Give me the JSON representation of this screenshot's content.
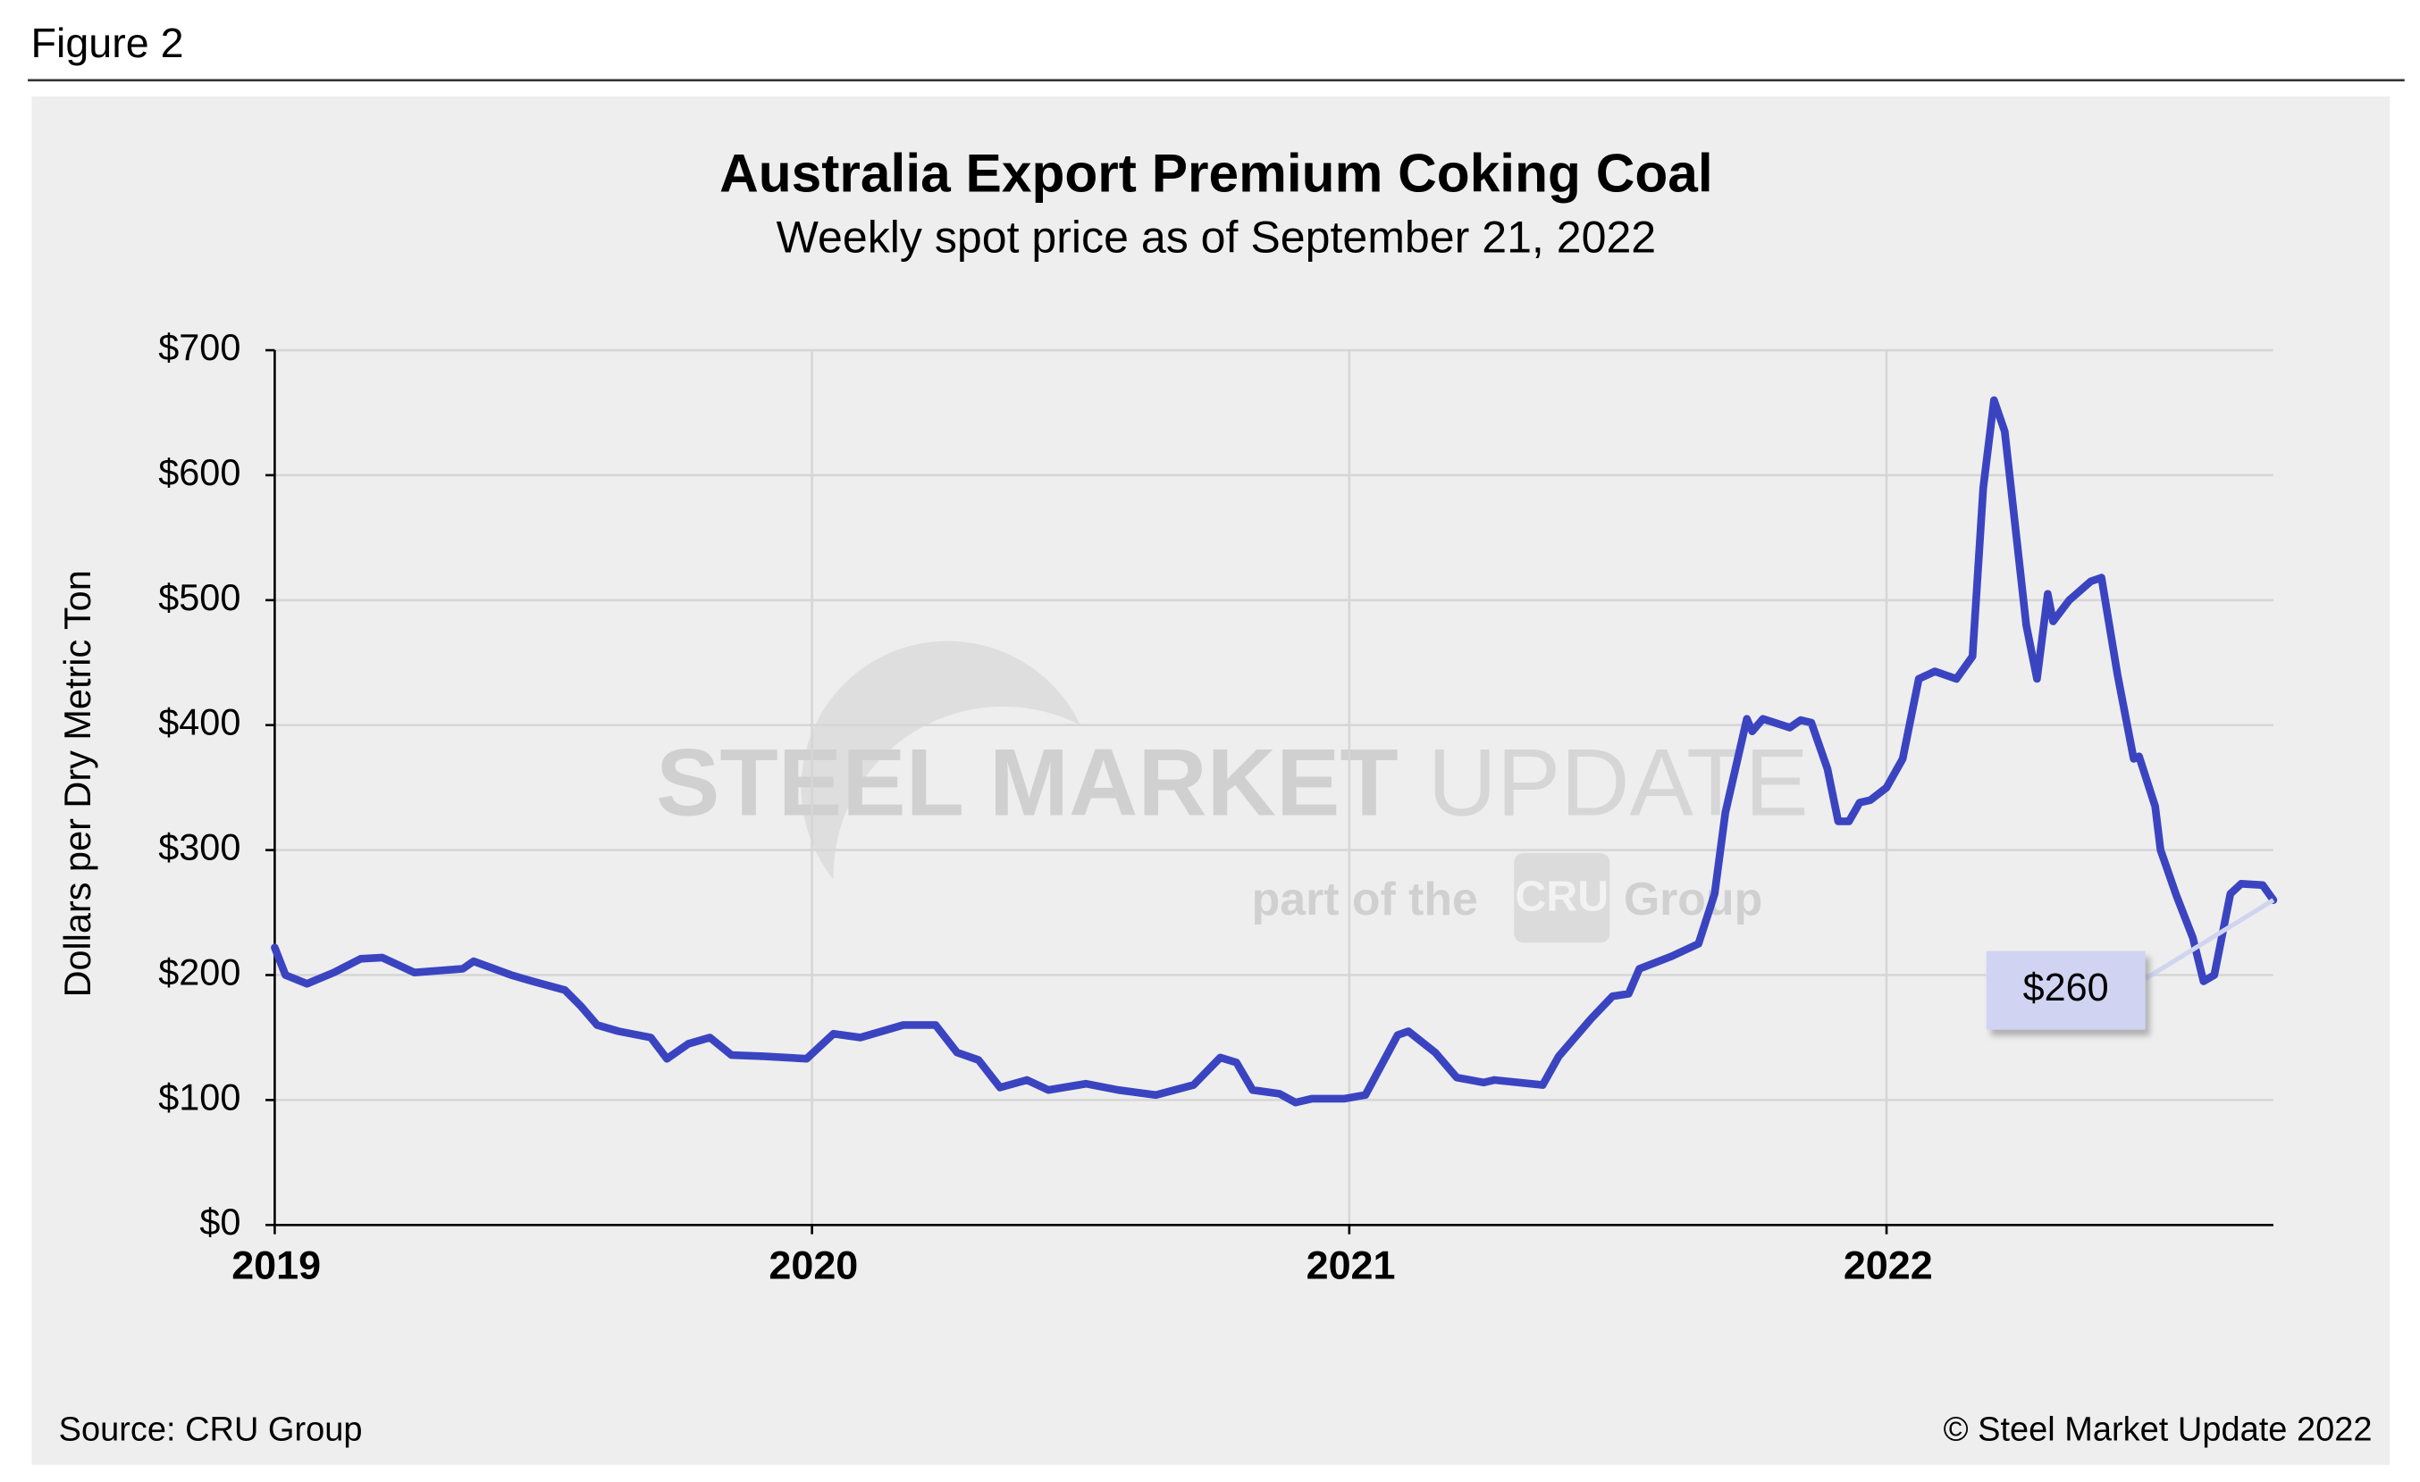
{
  "figure_label": "Figure 2",
  "chart_data": {
    "type": "line",
    "title": "Australia Export Premium Coking Coal",
    "subtitle": "Weekly spot price as of September 21, 2022",
    "y_label": "Dollars per Dry Metric Ton",
    "source": "Source: CRU Group",
    "copyright": "© Steel Market Update 2022",
    "watermark": {
      "brand": "STEEL MARKET",
      "brand_light": "UPDATE",
      "tagline": "part of the",
      "logo": "CRU",
      "group": "Group"
    },
    "x": [
      2019.0,
      2019.02,
      2019.06,
      2019.11,
      2019.16,
      2019.2,
      2019.26,
      2019.35,
      2019.37,
      2019.44,
      2019.48,
      2019.54,
      2019.57,
      2019.6,
      2019.64,
      2019.7,
      2019.73,
      2019.77,
      2019.81,
      2019.85,
      2019.91,
      2019.99,
      2020.04,
      2020.09,
      2020.17,
      2020.23,
      2020.27,
      2020.31,
      2020.35,
      2020.4,
      2020.44,
      2020.51,
      2020.57,
      2020.64,
      2020.71,
      2020.76,
      2020.79,
      2020.82,
      2020.87,
      2020.9,
      2020.93,
      2020.99,
      2021.03,
      2021.09,
      2021.11,
      2021.16,
      2021.2,
      2021.25,
      2021.27,
      2021.36,
      2021.39,
      2021.45,
      2021.49,
      2021.52,
      2021.54,
      2021.6,
      2021.65,
      2021.68,
      2021.7,
      2021.74,
      2021.75,
      2021.77,
      2021.82,
      2021.84,
      2021.86,
      2021.89,
      2021.91,
      2021.93,
      2021.95,
      2021.97,
      2022.0,
      2022.03,
      2022.06,
      2022.09,
      2022.13,
      2022.16,
      2022.18,
      2022.2,
      2022.22,
      2022.26,
      2022.28,
      2022.3,
      2022.31,
      2022.34,
      2022.38,
      2022.4,
      2022.43,
      2022.46,
      2022.47,
      2022.5,
      2022.51,
      2022.54,
      2022.57,
      2022.59,
      2022.61,
      2022.64,
      2022.66,
      2022.7,
      2022.72
    ],
    "series": [
      {
        "name": "Premium coking coal",
        "color": "#3b44c0",
        "values": [
          222,
          200,
          193,
          202,
          213,
          214,
          202,
          205,
          211,
          200,
          195,
          188,
          175,
          160,
          155,
          150,
          133,
          145,
          150,
          136,
          135,
          133,
          153,
          150,
          160,
          160,
          138,
          132,
          110,
          116,
          108,
          113,
          108,
          104,
          112,
          134,
          130,
          108,
          105,
          98,
          101,
          101,
          104,
          152,
          155,
          138,
          118,
          114,
          116,
          112,
          135,
          165,
          183,
          185,
          205,
          215,
          225,
          265,
          330,
          405,
          395,
          405,
          398,
          404,
          402,
          365,
          323,
          323,
          338,
          340,
          350,
          373,
          437,
          443,
          437,
          455,
          590,
          660,
          635,
          480,
          437,
          505,
          483,
          500,
          515,
          518,
          440,
          373,
          375,
          335,
          300,
          263,
          230,
          195,
          200,
          265,
          273,
          272,
          260
        ],
        "value_labels": [
          null,
          null,
          null,
          null,
          null,
          null,
          null,
          null,
          null,
          null,
          null,
          null,
          null,
          null,
          null,
          null,
          null,
          null,
          null,
          null,
          null,
          null,
          null,
          null,
          null,
          null,
          null,
          null,
          null,
          null,
          null,
          null,
          null,
          null,
          null,
          null,
          null,
          null,
          null,
          null,
          null,
          null,
          null,
          null,
          null,
          null,
          null,
          null,
          null,
          null,
          null,
          null,
          null,
          null,
          null,
          null,
          null,
          null,
          null,
          null,
          null,
          null,
          null,
          null,
          null,
          null,
          null,
          null,
          null,
          null,
          null,
          null,
          null,
          null,
          null,
          null,
          null,
          null,
          null,
          null,
          null,
          null,
          null,
          null,
          null,
          null,
          null,
          null,
          null,
          null,
          null,
          null,
          null,
          null,
          null,
          null,
          null,
          null,
          "$260"
        ]
      }
    ],
    "xlim": [
      2019,
      2022.72
    ],
    "xticks": [
      2019,
      2020,
      2021,
      2022
    ],
    "ylim": [
      0,
      700
    ],
    "yticks": [
      {
        "value": 0,
        "label": "$0"
      },
      {
        "value": 100,
        "label": "$100"
      },
      {
        "value": 200,
        "label": "$200"
      },
      {
        "value": 300,
        "label": "$300"
      },
      {
        "value": 400,
        "label": "$400"
      },
      {
        "value": 500,
        "label": "$500"
      },
      {
        "value": 600,
        "label": "$600"
      },
      {
        "value": 700,
        "label": "$700"
      }
    ],
    "grid": true
  }
}
